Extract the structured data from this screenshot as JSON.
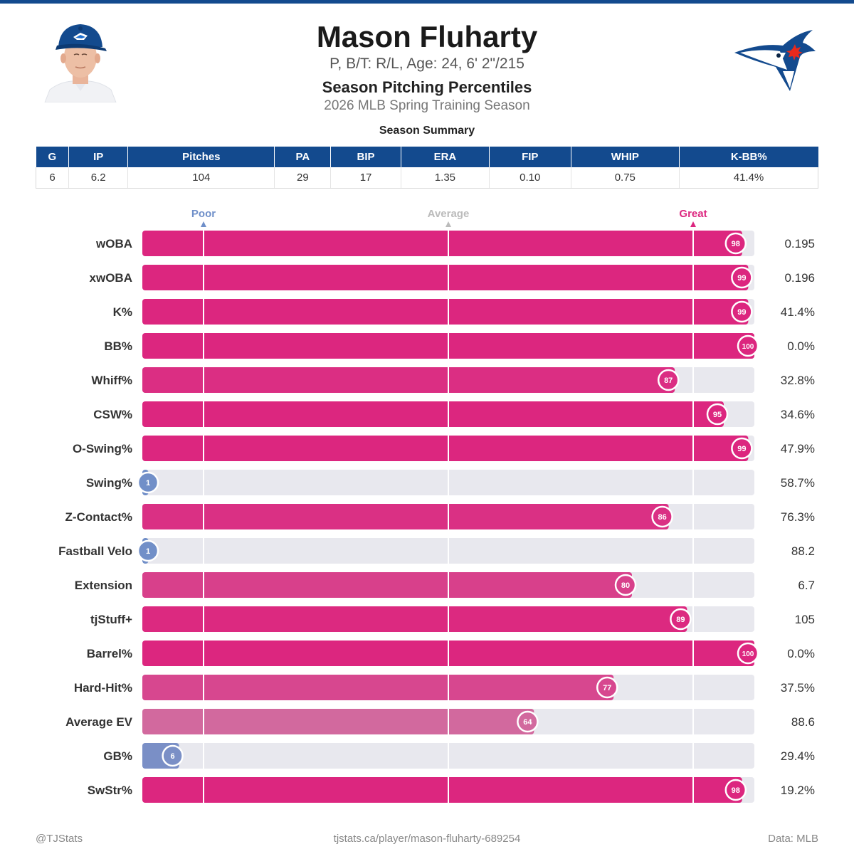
{
  "player": {
    "name": "Mason Fluharty",
    "bio": "P, B/T: R/L, Age: 24, 6' 2\"/215",
    "title": "Season Pitching Percentiles",
    "season": "2026 MLB Spring Training Season"
  },
  "summary": {
    "title": "Season Summary",
    "headers": [
      "G",
      "IP",
      "Pitches",
      "PA",
      "BIP",
      "ERA",
      "FIP",
      "WHIP",
      "K-BB%"
    ],
    "values": [
      "6",
      "6.2",
      "104",
      "29",
      "17",
      "1.35",
      "0.10",
      "0.75",
      "41.4%"
    ]
  },
  "chart_data": {
    "type": "bar",
    "orientation": "horizontal",
    "title": "Season Pitching Percentiles",
    "xlim": [
      0,
      100
    ],
    "reference_lines": [
      {
        "label": "Poor",
        "value": 10
      },
      {
        "label": "Average",
        "value": 50
      },
      {
        "label": "Great",
        "value": 90
      }
    ],
    "categories": [
      "wOBA",
      "xwOBA",
      "K%",
      "BB%",
      "Whiff%",
      "CSW%",
      "O-Swing%",
      "Swing%",
      "Z-Contact%",
      "Fastball Velo",
      "Extension",
      "tjStuff+",
      "Barrel%",
      "Hard-Hit%",
      "Average EV",
      "GB%",
      "SwStr%"
    ],
    "percentiles": [
      98,
      99,
      99,
      100,
      87,
      95,
      99,
      1,
      86,
      1,
      80,
      89,
      100,
      77,
      64,
      6,
      98
    ],
    "stat_values": [
      "0.195",
      "0.196",
      "41.4%",
      "0.0%",
      "32.8%",
      "34.6%",
      "47.9%",
      "58.7%",
      "76.3%",
      "88.2",
      "6.7",
      "105",
      "0.0%",
      "37.5%",
      "88.6",
      "29.4%",
      "19.2%"
    ],
    "colors": {
      "poor": "#6F8FC9",
      "great": "#DC267F",
      "neutral": "#CC8DAF",
      "track": "#E8E8EE",
      "poor_label": "#6F8FC9",
      "average_label": "#BBBBBB",
      "great_label": "#DC267F"
    }
  },
  "footer": {
    "left": "@TJStats",
    "center": "tjstats.ca/player/mason-fluharty-689254",
    "right": "Data: MLB"
  },
  "colors": {
    "brand": "#134A8E"
  }
}
